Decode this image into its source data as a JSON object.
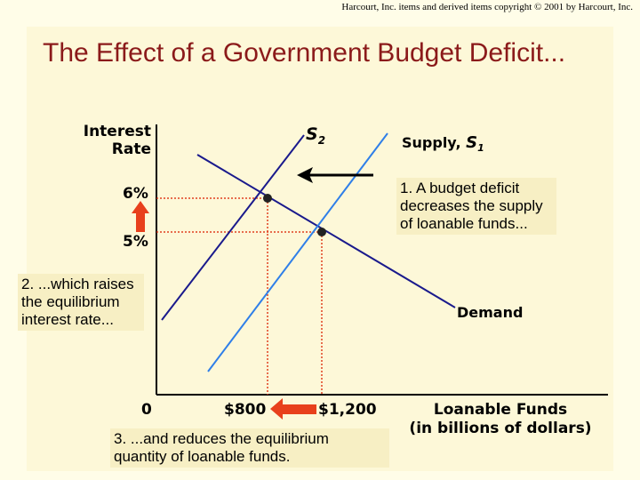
{
  "copyright": "Harcourt, Inc. items and derived items copyright © 2001 by Harcourt, Inc.",
  "title": "The Effect of a Government Budget Deficit...",
  "axes": {
    "y_label_line1": "Interest",
    "y_label_line2": "Rate",
    "x_label_line1": "Loanable Funds",
    "x_label_line2": "(in billions of dollars)",
    "origin": "0"
  },
  "curves": {
    "s2_letter": "S",
    "s2_sub": "2",
    "s1_prefix": "Supply, ",
    "s1_letter": "S",
    "s1_sub": "1",
    "demand": "Demand"
  },
  "ticks": {
    "y_high": "6%",
    "y_low": "5%",
    "x_low": "$800",
    "x_high": "$1,200"
  },
  "notes": {
    "note1": "1. A budget deficit decreases the supply of loanable funds...",
    "note2": "2. ...which raises the equilibrium interest rate...",
    "note3": "3. ...and reduces the equilibrium quantity of loanable funds."
  },
  "colors": {
    "demand": "#1a1a8c",
    "s1": "#2f7fe8",
    "s2": "#1a1a8c",
    "guides": "#e04020",
    "arrow_red": "#e8401c",
    "title": "#8b1a1a"
  }
}
